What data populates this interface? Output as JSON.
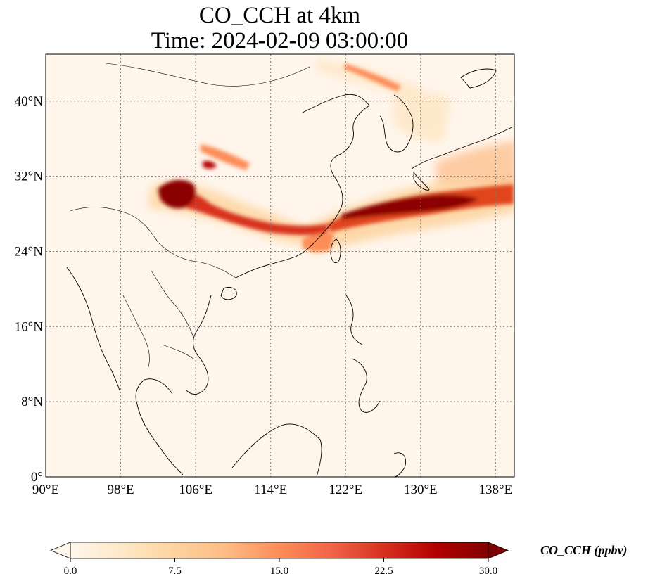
{
  "title": {
    "line1": "CO_CCH at 4km",
    "line2": "Time: 2024-02-09 03:00:00"
  },
  "map": {
    "extent": {
      "lon_min": 90,
      "lon_max": 140,
      "lat_min": 0,
      "lat_max": 45
    },
    "x_ticks": [
      90,
      98,
      106,
      114,
      122,
      130,
      138
    ],
    "y_ticks": [
      0,
      8,
      16,
      24,
      32,
      40
    ],
    "x_tick_labels": [
      "90°E",
      "98°E",
      "106°E",
      "114°E",
      "122°E",
      "130°E",
      "138°E"
    ],
    "y_tick_labels": [
      "0°",
      "8°N",
      "16°N",
      "24°N",
      "32°N",
      "40°N"
    ],
    "gridlines": "dotted",
    "background_color": "#fff5eb",
    "plumes": [
      {
        "name": "Tibetan plateau source",
        "lon": 103.8,
        "lat": 29.8,
        "value": 30
      },
      {
        "name": "Sichuan to east-China band",
        "lon": 110,
        "lat": 27.5,
        "value": 26
      },
      {
        "name": "East China Sea to south of Japan band",
        "lon": 129,
        "lat": 28.8,
        "value": 30
      },
      {
        "name": "Northern plume",
        "lon": 108,
        "lat": 33.5,
        "value": 18
      },
      {
        "name": "Taiwan Strait",
        "lon": 119.5,
        "lat": 24.5,
        "value": 15
      }
    ]
  },
  "colorbar": {
    "label": "CO_CCH (ppbv)",
    "min": 0,
    "max": 30,
    "ticks": [
      0,
      7.5,
      15,
      22.5,
      30
    ],
    "tick_labels": [
      "0.0",
      "7.5",
      "15.0",
      "22.5",
      "30.0"
    ],
    "extend": "both",
    "colormap": "OrRd",
    "colors": [
      "#fff7ec",
      "#fee8c8",
      "#fdd49e",
      "#fdbb84",
      "#fc8d59",
      "#ef6548",
      "#d7301f",
      "#b30000",
      "#7f0000"
    ]
  }
}
